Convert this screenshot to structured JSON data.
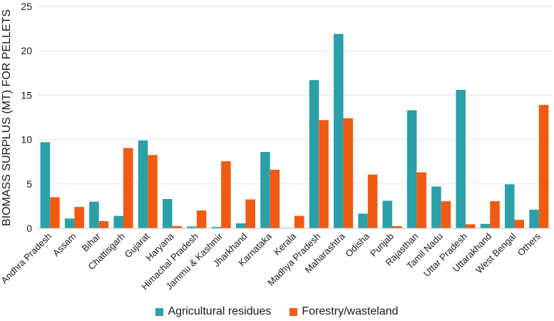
{
  "chart_data": {
    "type": "bar",
    "title": "",
    "xlabel": "",
    "ylabel": "BIOMASS SURPLUS (MT) FOR PELLETS",
    "ylim": [
      0,
      25
    ],
    "yticks": [
      0,
      5,
      10,
      15,
      20,
      25
    ],
    "grid": true,
    "legend_position": "bottom",
    "categories": [
      "Andhra Pradesh",
      "Assam",
      "Bihar",
      "Chattisgarh",
      "Gujarat",
      "Haryana",
      "Himachal Pradesh",
      "Jammu & Kashmir",
      "Jharkhand",
      "Karnataka",
      "Kerala",
      "Madhya Pradesh",
      "Maharashtra",
      "Odisha",
      "Punjab",
      "Rajasthan",
      "Tamil Nadu",
      "Uttar Pradesh",
      "Uttarakhand",
      "West Bengal",
      "Others"
    ],
    "series": [
      {
        "name": "Agricultural residues",
        "color": "#2aa0a8",
        "values": [
          9.7,
          1.1,
          3.0,
          1.4,
          9.9,
          3.3,
          0.2,
          0.15,
          0.55,
          8.6,
          0.05,
          16.7,
          21.9,
          1.65,
          3.1,
          13.3,
          4.7,
          15.6,
          0.5,
          4.95,
          2.1
        ]
      },
      {
        "name": "Forestry/wasteland",
        "color": "#f15a12",
        "values": [
          3.5,
          2.4,
          0.8,
          9.05,
          8.25,
          0.25,
          2.0,
          7.55,
          3.25,
          6.6,
          1.4,
          12.2,
          12.4,
          6.05,
          0.25,
          6.3,
          3.05,
          0.45,
          3.05,
          0.95,
          13.9
        ]
      }
    ]
  }
}
